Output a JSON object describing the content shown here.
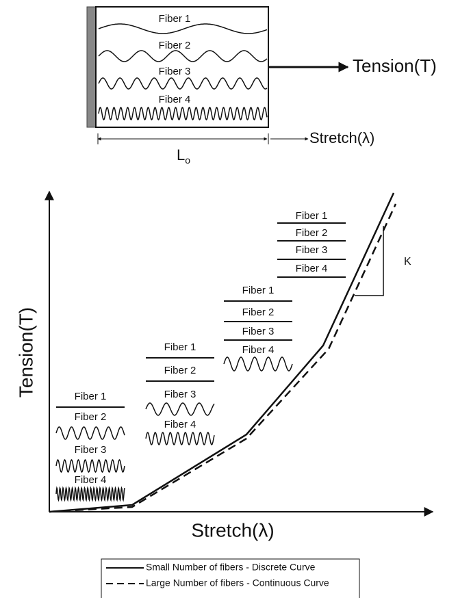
{
  "top": {
    "fibers": [
      "Fiber 1",
      "Fiber 2",
      "Fiber 3",
      "Fiber 4"
    ],
    "force_label": "Tension(T)",
    "stretch_label": "Stretch(λ)",
    "length_label": {
      "main": "L",
      "sub": "o"
    }
  },
  "plot": {
    "y_label": "Tension(T)",
    "x_label": "Stretch(λ)",
    "stiffness_label": "K",
    "stages": [
      {
        "fibers": [
          "Fiber 1",
          "Fiber 2",
          "Fiber 3",
          "Fiber 4"
        ]
      },
      {
        "fibers": [
          "Fiber 1",
          "Fiber 2",
          "Fiber 3",
          "Fiber 4"
        ]
      },
      {
        "fibers": [
          "Fiber 1",
          "Fiber 2",
          "Fiber 3",
          "Fiber 4"
        ]
      },
      {
        "fibers": [
          "Fiber 1",
          "Fiber 2",
          "Fiber 3",
          "Fiber 4"
        ]
      }
    ],
    "legend": [
      "Small Number of fibers - Discrete Curve",
      "Large Number of fibers - Continuous Curve"
    ]
  }
}
